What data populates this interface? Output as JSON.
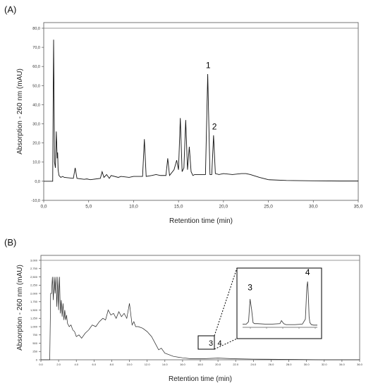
{
  "chart_data": [
    {
      "panel_label": "(A)",
      "type": "line",
      "xlabel": "Retention time (min)",
      "ylabel": "Absorption - 260 nm (mAU)",
      "xlim": [
        0,
        35
      ],
      "ylim": [
        -10,
        80
      ],
      "x_ticks": [
        "0,0",
        "5,0",
        "10,0",
        "15,0",
        "20,0",
        "25,0",
        "30,0",
        "35,0"
      ],
      "x_tick_values": [
        0,
        5,
        10,
        15,
        20,
        25,
        30,
        35
      ],
      "y_ticks": [
        "-10,0",
        "0,0",
        "10,0",
        "20,0",
        "30,0",
        "40,0",
        "50,0",
        "60,0",
        "70,0",
        "80,0"
      ],
      "y_tick_values": [
        -10,
        0,
        10,
        20,
        30,
        40,
        50,
        60,
        70,
        80
      ],
      "series": [
        {
          "x": [
            0,
            1.0,
            1.05,
            1.1,
            1.15,
            1.2,
            1.3,
            1.4,
            1.5,
            1.55,
            1.6,
            1.7,
            1.9,
            2.1,
            2.3,
            3.3,
            3.5,
            3.7,
            4.5,
            4.8,
            5.2,
            6.3,
            6.5,
            6.7,
            7.0,
            7.3,
            7.5,
            8.3,
            8.6,
            9.5,
            10.0,
            11.0,
            11.2,
            11.4,
            12.0,
            12.5,
            13.0,
            13.6,
            13.8,
            14.0,
            14.5,
            14.8,
            15.0,
            15.2,
            15.4,
            15.6,
            15.8,
            16.0,
            16.2,
            16.4,
            16.6,
            16.8,
            17.5,
            18.0,
            18.25,
            18.5,
            18.7,
            18.9,
            19.1,
            19.5,
            20.0,
            21.0,
            22.0,
            22.5,
            23.0,
            24.0,
            25.0,
            27.0,
            30.0,
            33.0,
            35.0
          ],
          "y": [
            0,
            0,
            40,
            74,
            45,
            10,
            7,
            26,
            12,
            15,
            6,
            3,
            2,
            2.5,
            2,
            1.5,
            7,
            1.5,
            1,
            1.2,
            0.8,
            1.5,
            5,
            2,
            3.5,
            1.5,
            3,
            2,
            2.5,
            2,
            2.5,
            2.5,
            22,
            2.5,
            3,
            3.5,
            3,
            3,
            12,
            3,
            6,
            11,
            6,
            33,
            5,
            7,
            32,
            6,
            18,
            5,
            3,
            3.5,
            3.5,
            3.5,
            56,
            3.5,
            3.5,
            24,
            4,
            3.5,
            4,
            3.5,
            4,
            4,
            3.5,
            2,
            0.8,
            0.4,
            0.2,
            0.1,
            0.1
          ]
        }
      ],
      "annotations": [
        {
          "text": "1",
          "x": 18.3,
          "y": 58
        },
        {
          "text": "2",
          "x": 19.0,
          "y": 26
        }
      ]
    },
    {
      "panel_label": "(B)",
      "type": "line",
      "xlabel": "Retention time (min)",
      "ylabel": "Absorption - 260 nm (mAU)",
      "xlim": [
        0,
        36
      ],
      "ylim": [
        0,
        3000
      ],
      "x_ticks": [
        "0.0",
        "2.0",
        "4.0",
        "6.0",
        "8.0",
        "10.0",
        "12.0",
        "14.0",
        "16.0",
        "18.0",
        "20.0",
        "22.0",
        "24.0",
        "26.0",
        "28.0",
        "30.0",
        "32.0",
        "34.0",
        "36.0"
      ],
      "x_tick_values": [
        0,
        2,
        4,
        6,
        8,
        10,
        12,
        14,
        16,
        18,
        20,
        22,
        24,
        26,
        28,
        30,
        32,
        34,
        36
      ],
      "y_ticks": [
        "0",
        "250",
        "500",
        "750",
        "1,000",
        "1,250",
        "1,500",
        "1,750",
        "2,000",
        "2,250",
        "2,500",
        "2,750",
        "3,000"
      ],
      "y_tick_values": [
        0,
        250,
        500,
        750,
        1000,
        1250,
        1500,
        1750,
        2000,
        2250,
        2500,
        2750,
        3000
      ],
      "series": [
        {
          "x": [
            0,
            1.0,
            1.1,
            1.2,
            1.3,
            1.4,
            1.5,
            1.6,
            1.7,
            1.8,
            1.9,
            2.0,
            2.1,
            2.2,
            2.3,
            2.4,
            2.5,
            2.6,
            2.7,
            2.8,
            2.9,
            3.0,
            3.2,
            3.4,
            3.6,
            3.8,
            4.0,
            4.3,
            4.6,
            5.0,
            5.4,
            5.8,
            6.2,
            6.6,
            7.0,
            7.3,
            7.6,
            7.9,
            8.2,
            8.5,
            8.8,
            9.1,
            9.4,
            9.7,
            10.0,
            10.3,
            10.5,
            10.7,
            11.0,
            11.5,
            12.0,
            12.5,
            13.0,
            13.3,
            13.6,
            14.0,
            14.5,
            15.0,
            16.0,
            17.0,
            18.0,
            19.0,
            20.0,
            21.0,
            22.0,
            24.0,
            28.0,
            32.0,
            36.0
          ],
          "y": [
            0,
            0,
            2000,
            2000,
            2500,
            1800,
            2500,
            2000,
            2500,
            1600,
            2500,
            1500,
            2500,
            1400,
            1800,
            1300,
            1700,
            1200,
            1500,
            1200,
            1350,
            1100,
            1000,
            1050,
            900,
            850,
            700,
            750,
            650,
            800,
            900,
            1050,
            1000,
            1150,
            1250,
            1200,
            1500,
            1350,
            1400,
            1250,
            1450,
            1300,
            1400,
            1250,
            1700,
            1050,
            1150,
            1000,
            1000,
            950,
            850,
            700,
            450,
            300,
            350,
            200,
            150,
            100,
            60,
            30,
            30,
            40,
            50,
            40,
            30,
            20,
            10,
            0,
            0
          ]
        }
      ],
      "annotations": [
        {
          "text": "3",
          "x": 19.2,
          "y": 250
        },
        {
          "text": "4",
          "x": 20.2,
          "y": 250
        }
      ],
      "inset": {
        "series": [
          {
            "x": [
              0,
              0.05,
              0.08,
              0.1,
              0.12,
              0.14,
              0.16,
              0.2,
              0.3,
              0.4,
              0.5,
              0.52,
              0.55,
              0.58,
              0.6,
              0.7,
              0.8,
              0.84,
              0.86,
              0.87,
              0.88,
              0.89,
              0.9,
              0.92,
              0.95,
              1.0
            ],
            "y": [
              0.05,
              0.05,
              0.1,
              0.55,
              0.35,
              0.08,
              0.06,
              0.06,
              0.05,
              0.05,
              0.06,
              0.12,
              0.06,
              0.04,
              0.04,
              0.04,
              0.05,
              0.15,
              0.8,
              0.9,
              0.6,
              0.2,
              0.08,
              0.04,
              0.03,
              0.03
            ]
          }
        ],
        "annotations": [
          {
            "text": "3",
            "x": 0.1,
            "y": 0.7
          },
          {
            "text": "4",
            "x": 0.87,
            "y": 1.0
          }
        ]
      }
    }
  ]
}
